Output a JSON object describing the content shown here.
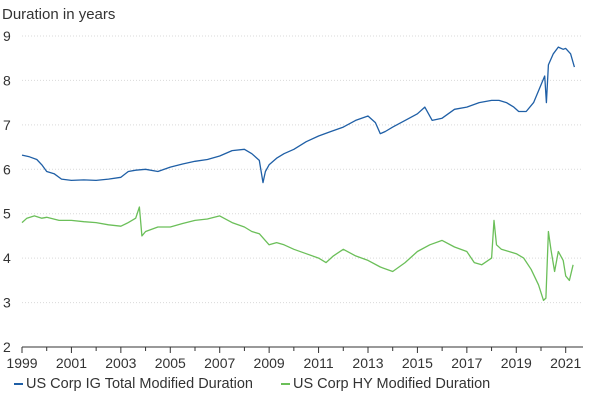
{
  "chart_data": {
    "type": "line",
    "title": "",
    "ylabel": "Duration in years",
    "xlabel": "",
    "xlim": [
      1999.0,
      2021.7
    ],
    "ylim": [
      2,
      9
    ],
    "xticks": [
      1999,
      2001,
      2003,
      2005,
      2007,
      2009,
      2011,
      2013,
      2015,
      2017,
      2019,
      2021
    ],
    "yticks": [
      2,
      3,
      4,
      5,
      6,
      7,
      8,
      9
    ],
    "grid": "horizontal",
    "legend_position": "bottom",
    "series": [
      {
        "name": "US Corp IG Total Modified Duration",
        "color": "#1f5fa6",
        "x": [
          1999.0,
          1999.3,
          1999.6,
          1999.8,
          2000.0,
          2000.3,
          2000.6,
          2001.0,
          2001.5,
          2002.0,
          2002.5,
          2003.0,
          2003.3,
          2003.6,
          2004.0,
          2004.5,
          2005.0,
          2005.5,
          2006.0,
          2006.5,
          2007.0,
          2007.5,
          2008.0,
          2008.3,
          2008.6,
          2008.75,
          2008.85,
          2009.0,
          2009.3,
          2009.6,
          2010.0,
          2010.5,
          2011.0,
          2011.5,
          2012.0,
          2012.5,
          2013.0,
          2013.3,
          2013.5,
          2013.7,
          2014.0,
          2014.5,
          2015.0,
          2015.3,
          2015.6,
          2016.0,
          2016.5,
          2017.0,
          2017.5,
          2018.0,
          2018.3,
          2018.6,
          2018.9,
          2019.1,
          2019.4,
          2019.7,
          2020.0,
          2020.15,
          2020.22,
          2020.3,
          2020.5,
          2020.7,
          2020.9,
          2021.0,
          2021.2,
          2021.35
        ],
        "values": [
          6.32,
          6.28,
          6.22,
          6.1,
          5.95,
          5.9,
          5.78,
          5.75,
          5.76,
          5.75,
          5.78,
          5.82,
          5.95,
          5.98,
          6.0,
          5.95,
          6.05,
          6.12,
          6.18,
          6.22,
          6.3,
          6.42,
          6.45,
          6.35,
          6.2,
          5.7,
          5.95,
          6.1,
          6.25,
          6.35,
          6.45,
          6.62,
          6.75,
          6.85,
          6.95,
          7.1,
          7.2,
          7.05,
          6.8,
          6.85,
          6.95,
          7.1,
          7.25,
          7.4,
          7.1,
          7.15,
          7.35,
          7.4,
          7.5,
          7.55,
          7.55,
          7.5,
          7.4,
          7.3,
          7.3,
          7.5,
          7.9,
          8.1,
          7.5,
          8.35,
          8.6,
          8.75,
          8.7,
          8.72,
          8.6,
          8.3
        ]
      },
      {
        "name": "US Corp HY Modified Duration",
        "color": "#6bbf59",
        "x": [
          1999.0,
          1999.2,
          1999.5,
          1999.8,
          2000.0,
          2000.5,
          2001.0,
          2001.5,
          2002.0,
          2002.5,
          2003.0,
          2003.3,
          2003.6,
          2003.75,
          2003.85,
          2004.0,
          2004.5,
          2005.0,
          2005.5,
          2006.0,
          2006.5,
          2007.0,
          2007.5,
          2008.0,
          2008.3,
          2008.6,
          2009.0,
          2009.3,
          2009.6,
          2010.0,
          2010.5,
          2011.0,
          2011.3,
          2011.6,
          2012.0,
          2012.5,
          2013.0,
          2013.5,
          2014.0,
          2014.5,
          2015.0,
          2015.5,
          2016.0,
          2016.5,
          2017.0,
          2017.3,
          2017.6,
          2018.0,
          2018.1,
          2018.2,
          2018.4,
          2018.7,
          2019.0,
          2019.3,
          2019.6,
          2019.9,
          2020.1,
          2020.2,
          2020.3,
          2020.4,
          2020.55,
          2020.7,
          2020.9,
          2021.0,
          2021.15,
          2021.3
        ],
        "values": [
          4.8,
          4.9,
          4.95,
          4.9,
          4.92,
          4.85,
          4.85,
          4.82,
          4.8,
          4.75,
          4.72,
          4.8,
          4.9,
          5.15,
          4.5,
          4.6,
          4.7,
          4.7,
          4.78,
          4.85,
          4.88,
          4.95,
          4.8,
          4.7,
          4.6,
          4.55,
          4.3,
          4.35,
          4.3,
          4.2,
          4.1,
          4.0,
          3.9,
          4.05,
          4.2,
          4.05,
          3.95,
          3.8,
          3.7,
          3.9,
          4.15,
          4.3,
          4.4,
          4.25,
          4.15,
          3.9,
          3.85,
          4.0,
          4.85,
          4.3,
          4.2,
          4.15,
          4.1,
          4.0,
          3.75,
          3.4,
          3.05,
          3.1,
          4.6,
          4.2,
          3.7,
          4.15,
          3.95,
          3.6,
          3.5,
          3.85
        ]
      }
    ]
  }
}
